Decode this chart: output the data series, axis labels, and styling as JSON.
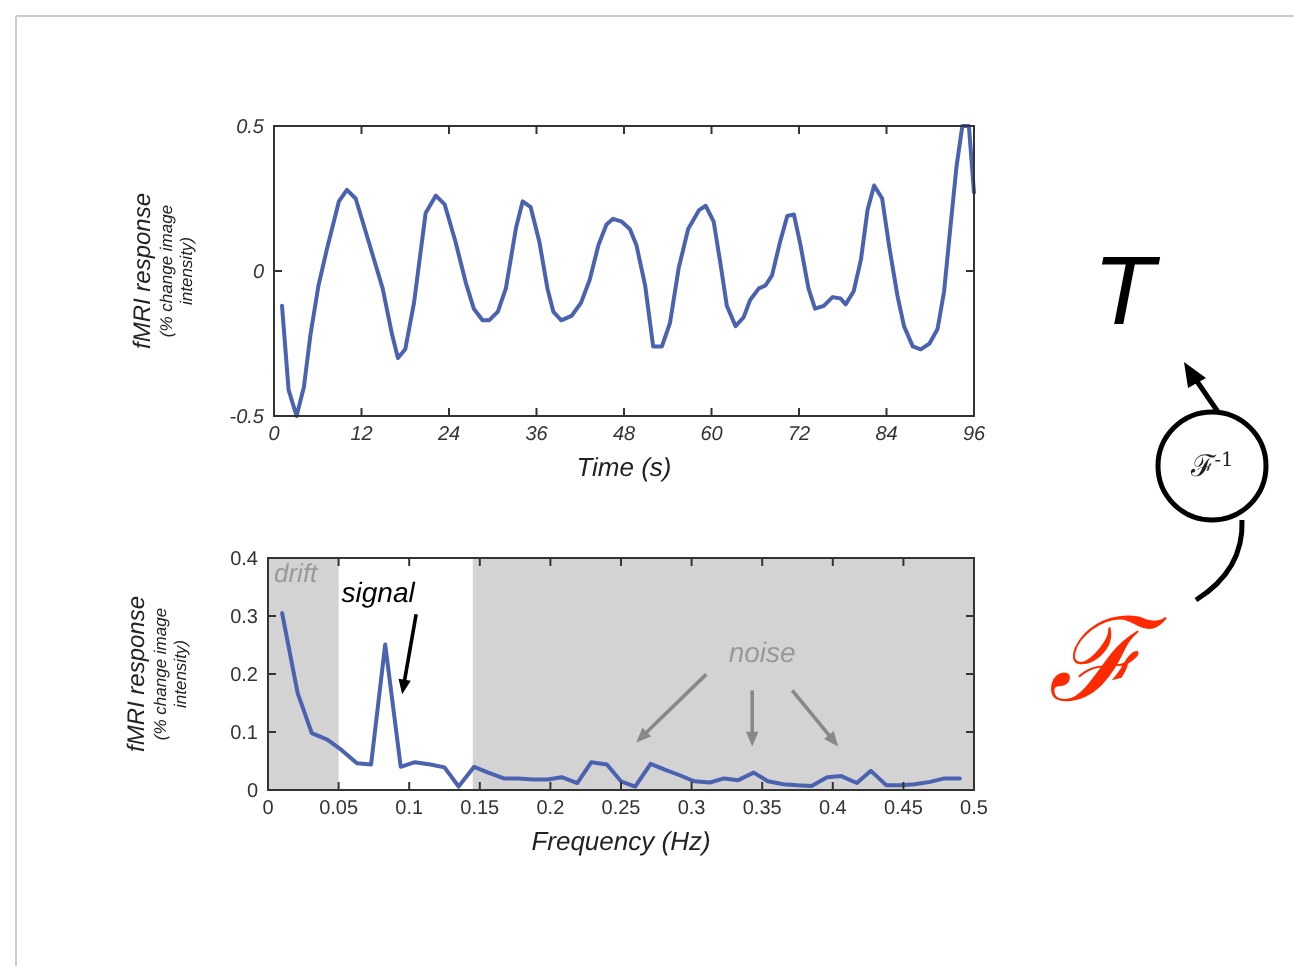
{
  "chart_data": [
    {
      "type": "line",
      "xlabel": "Time (s)",
      "ylabel": "fMRI response (% change image intensity)",
      "xlim": [
        0,
        96
      ],
      "ylim": [
        -0.5,
        0.5
      ],
      "xticks": [
        0,
        12,
        24,
        36,
        48,
        60,
        72,
        84,
        96
      ],
      "yticks": [
        {
          "value": -0.5,
          "label": "-0.5"
        },
        0,
        0.5
      ],
      "series": [
        {
          "color": "#4a62b0",
          "x": [
            1.1,
            2.0,
            3.1,
            4.1,
            5.0,
            6.1,
            7.3,
            8.9,
            10,
            11.2,
            13,
            14.9,
            16.2,
            17,
            18,
            19.2,
            20.8,
            22.2,
            23.4,
            24.9,
            26.3,
            27.4,
            28.6,
            29.5,
            30.7,
            31.8,
            33.2,
            34.1,
            35.2,
            36.4,
            37.5,
            38.3,
            39.4,
            40.8,
            42.1,
            43.3,
            44.5,
            45.6,
            46.5,
            47.7,
            48.8,
            49.7,
            50.9,
            52,
            53.2,
            54.3,
            55.5,
            56.8,
            58.3,
            59.2,
            60.3,
            61.2,
            62.1,
            63.3,
            64.4,
            65.3,
            66.5,
            67.4,
            68.3,
            69.4,
            70.4,
            71.3,
            72.2,
            73.3,
            74.2,
            75.4,
            76.6,
            77.7,
            78.4,
            79.5,
            80.5,
            81.4,
            82.3,
            83.4,
            84.4,
            85.5,
            86.4,
            87.6,
            88.7,
            89.9,
            91,
            91.9,
            92.8,
            93.6,
            94.4,
            95.3,
            96
          ],
          "values": [
            -0.12,
            -0.41,
            -0.5,
            -0.4,
            -0.22,
            -0.05,
            0.08,
            0.24,
            0.28,
            0.25,
            0.1,
            -0.06,
            -0.22,
            -0.3,
            -0.27,
            -0.11,
            0.2,
            0.26,
            0.23,
            0.1,
            -0.04,
            -0.13,
            -0.17,
            -0.17,
            -0.14,
            -0.06,
            0.15,
            0.24,
            0.22,
            0.1,
            -0.06,
            -0.14,
            -0.17,
            -0.155,
            -0.11,
            -0.03,
            0.09,
            0.16,
            0.18,
            0.17,
            0.145,
            0.09,
            -0.05,
            -0.26,
            -0.26,
            -0.18,
            0.01,
            0.145,
            0.21,
            0.225,
            0.17,
            0.03,
            -0.12,
            -0.19,
            -0.16,
            -0.1,
            -0.06,
            -0.05,
            -0.015,
            0.1,
            0.19,
            0.195,
            0.09,
            -0.06,
            -0.13,
            -0.12,
            -0.09,
            -0.095,
            -0.115,
            -0.07,
            0.04,
            0.21,
            0.295,
            0.25,
            0.08,
            -0.085,
            -0.19,
            -0.26,
            -0.27,
            -0.25,
            -0.2,
            -0.07,
            0.16,
            0.36,
            0.5,
            0.5,
            0.27
          ]
        }
      ]
    },
    {
      "type": "line",
      "xlabel": "Frequency (Hz)",
      "ylabel": "fMRI response (% change image intensity)",
      "xlim": [
        0,
        0.5
      ],
      "ylim": [
        0,
        0.4
      ],
      "xticks": [
        0,
        0.05,
        0.1,
        0.15,
        0.2,
        0.25,
        0.3,
        0.35,
        0.4,
        0.45,
        0.5
      ],
      "yticks": [
        0,
        0.1,
        0.2,
        0.3,
        0.4
      ],
      "series": [
        {
          "color": "#4a62b0",
          "x": [
            0.01,
            0.021,
            0.031,
            0.042,
            0.052,
            0.063,
            0.073,
            0.083,
            0.094,
            0.104,
            0.115,
            0.125,
            0.135,
            0.146,
            0.156,
            0.167,
            0.177,
            0.188,
            0.198,
            0.208,
            0.219,
            0.229,
            0.24,
            0.25,
            0.26,
            0.271,
            0.281,
            0.292,
            0.302,
            0.313,
            0.323,
            0.333,
            0.344,
            0.354,
            0.365,
            0.375,
            0.385,
            0.396,
            0.406,
            0.417,
            0.427,
            0.438,
            0.448,
            0.458,
            0.469,
            0.479,
            0.49
          ],
          "values": [
            0.305,
            0.167,
            0.098,
            0.087,
            0.069,
            0.046,
            0.044,
            0.251,
            0.04,
            0.048,
            0.044,
            0.039,
            0.006,
            0.04,
            0.03,
            0.02,
            0.02,
            0.018,
            0.018,
            0.022,
            0.012,
            0.048,
            0.044,
            0.015,
            0.006,
            0.045,
            0.035,
            0.025,
            0.015,
            0.013,
            0.02,
            0.017,
            0.03,
            0.015,
            0.01,
            0.008,
            0.007,
            0.022,
            0.024,
            0.012,
            0.033,
            0.008,
            0.008,
            0.01,
            0.014,
            0.02,
            0.02
          ]
        }
      ],
      "bands": [
        {
          "axis": "x",
          "from": 0,
          "to": 0.05,
          "label": "drift",
          "color": "#d3d3d3"
        },
        {
          "axis": "x",
          "from": 0.145,
          "to": 0.5,
          "color": "#d3d3d3"
        }
      ],
      "annotations": [
        {
          "text": "signal",
          "x": 0.095,
          "y": 0.165
        },
        "noise"
      ]
    },
    {
      "type": "other",
      "annotations": [
        "T",
        "ℱ$^{-1}$",
        "ℱ"
      ]
    }
  ]
}
